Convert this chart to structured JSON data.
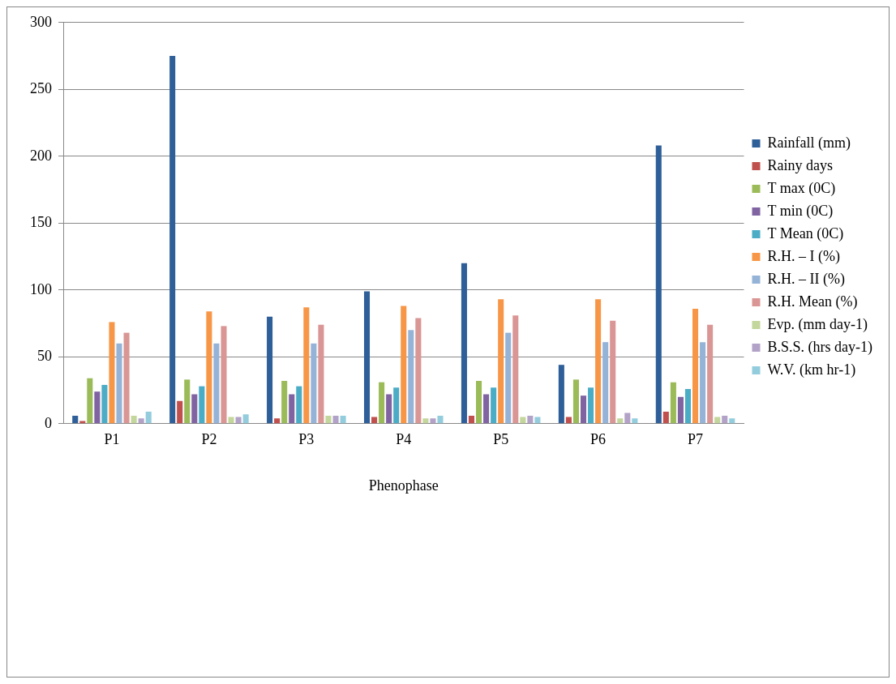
{
  "chart_data": {
    "type": "bar",
    "xlabel": "Phenophase",
    "categories": [
      "P1",
      "P2",
      "P3",
      "P4",
      "P5",
      "P6",
      "P7"
    ],
    "series": [
      {
        "name": "Rainfall (mm)",
        "color": "#2f5f98",
        "values": [
          6,
          275,
          80,
          99,
          120,
          44,
          208
        ]
      },
      {
        "name": "Rainy days",
        "color": "#c0504d",
        "values": [
          2,
          17,
          4,
          5,
          6,
          5,
          9
        ]
      },
      {
        "name": "T max (0C)",
        "color": "#9bbb59",
        "values": [
          34,
          33,
          32,
          31,
          32,
          33,
          31
        ]
      },
      {
        "name": "T min (0C)",
        "color": "#8064a2",
        "values": [
          24,
          22,
          22,
          22,
          22,
          21,
          20
        ]
      },
      {
        "name": "T Mean (0C)",
        "color": "#4bacc6",
        "values": [
          29,
          28,
          28,
          27,
          27,
          27,
          26
        ]
      },
      {
        "name": "R.H. – I (%)",
        "color": "#f79646",
        "values": [
          76,
          84,
          87,
          88,
          93,
          93,
          86
        ]
      },
      {
        "name": "R.H. – II (%)",
        "color": "#95b3d7",
        "values": [
          60,
          60,
          60,
          70,
          68,
          61,
          61
        ]
      },
      {
        "name": "R.H. Mean (%)",
        "color": "#d99694",
        "values": [
          68,
          73,
          74,
          79,
          81,
          77,
          74
        ]
      },
      {
        "name": "Evp. (mm day-1)",
        "color": "#c3d69b",
        "values": [
          6,
          5,
          6,
          4,
          5,
          4,
          5
        ]
      },
      {
        "name": "B.S.S. (hrs day-1)",
        "color": "#b3a2c7",
        "values": [
          4,
          5,
          6,
          4,
          6,
          8,
          6
        ]
      },
      {
        "name": "W.V. (km hr-1)",
        "color": "#93cddd",
        "values": [
          9,
          7,
          6,
          6,
          5,
          4,
          4
        ]
      }
    ],
    "ylim": [
      0,
      300
    ],
    "yticks": [
      0,
      50,
      100,
      150,
      200,
      250,
      300
    ],
    "grid": "y",
    "legend": "right"
  }
}
